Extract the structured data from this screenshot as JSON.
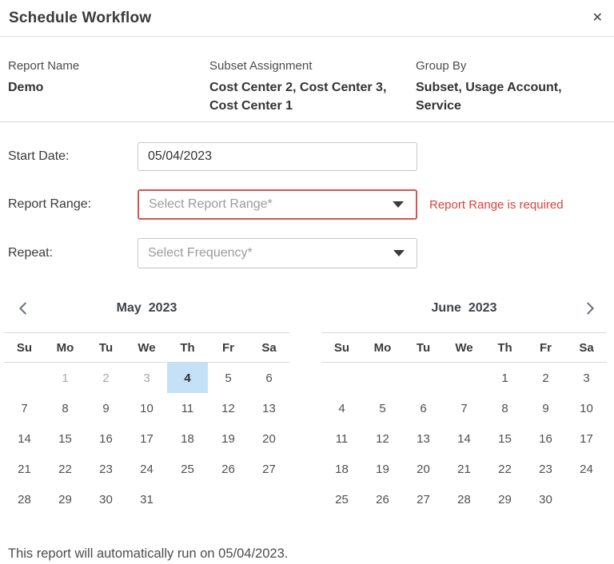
{
  "colors": {
    "selected_day_bg": "#c5e1f7",
    "error_text": "#dc4437",
    "error_border": "#d9534f"
  },
  "header": {
    "title": "Schedule Workflow"
  },
  "icons": {
    "close": "✕"
  },
  "summary": {
    "columns": [
      {
        "label": "Report Name",
        "value": "Demo"
      },
      {
        "label": "Subset Assignment",
        "value": "Cost Center 2, Cost Center 3, Cost Center 1"
      },
      {
        "label": "Group By",
        "value": "Subset, Usage Account, Service"
      }
    ]
  },
  "form": {
    "start_date": {
      "label": "Start Date:",
      "value": "05/04/2023"
    },
    "report_range": {
      "label": "Report Range:",
      "placeholder": "Select Report Range*",
      "error": "Report Range is required"
    },
    "repeat": {
      "label": "Repeat:",
      "placeholder": "Select Frequency*"
    }
  },
  "calendar": {
    "weekdays": [
      "Su",
      "Mo",
      "Tu",
      "We",
      "Th",
      "Fr",
      "Sa"
    ],
    "months": [
      {
        "name": "May",
        "year": "2023",
        "cells": [
          {
            "d": ""
          },
          {
            "d": "1",
            "state": "muted"
          },
          {
            "d": "2",
            "state": "muted"
          },
          {
            "d": "3",
            "state": "muted"
          },
          {
            "d": "4",
            "state": "selected"
          },
          {
            "d": "5"
          },
          {
            "d": "6"
          },
          {
            "d": "7"
          },
          {
            "d": "8"
          },
          {
            "d": "9"
          },
          {
            "d": "10"
          },
          {
            "d": "11"
          },
          {
            "d": "12"
          },
          {
            "d": "13"
          },
          {
            "d": "14"
          },
          {
            "d": "15"
          },
          {
            "d": "16"
          },
          {
            "d": "17"
          },
          {
            "d": "18"
          },
          {
            "d": "19"
          },
          {
            "d": "20"
          },
          {
            "d": "21"
          },
          {
            "d": "22"
          },
          {
            "d": "23"
          },
          {
            "d": "24"
          },
          {
            "d": "25"
          },
          {
            "d": "26"
          },
          {
            "d": "27"
          },
          {
            "d": "28"
          },
          {
            "d": "29"
          },
          {
            "d": "30"
          },
          {
            "d": "31"
          },
          {
            "d": ""
          },
          {
            "d": ""
          },
          {
            "d": ""
          }
        ]
      },
      {
        "name": "June",
        "year": "2023",
        "cells": [
          {
            "d": ""
          },
          {
            "d": ""
          },
          {
            "d": ""
          },
          {
            "d": ""
          },
          {
            "d": "1"
          },
          {
            "d": "2"
          },
          {
            "d": "3"
          },
          {
            "d": "4"
          },
          {
            "d": "5"
          },
          {
            "d": "6"
          },
          {
            "d": "7"
          },
          {
            "d": "8"
          },
          {
            "d": "9"
          },
          {
            "d": "10"
          },
          {
            "d": "11"
          },
          {
            "d": "12"
          },
          {
            "d": "13"
          },
          {
            "d": "14"
          },
          {
            "d": "15"
          },
          {
            "d": "16"
          },
          {
            "d": "17"
          },
          {
            "d": "18"
          },
          {
            "d": "19"
          },
          {
            "d": "20"
          },
          {
            "d": "21"
          },
          {
            "d": "22"
          },
          {
            "d": "23"
          },
          {
            "d": "24"
          },
          {
            "d": "25"
          },
          {
            "d": "26"
          },
          {
            "d": "27"
          },
          {
            "d": "28"
          },
          {
            "d": "29"
          },
          {
            "d": "30"
          },
          {
            "d": ""
          }
        ]
      }
    ]
  },
  "footer": {
    "note": "This report will automatically run on 05/04/2023."
  }
}
